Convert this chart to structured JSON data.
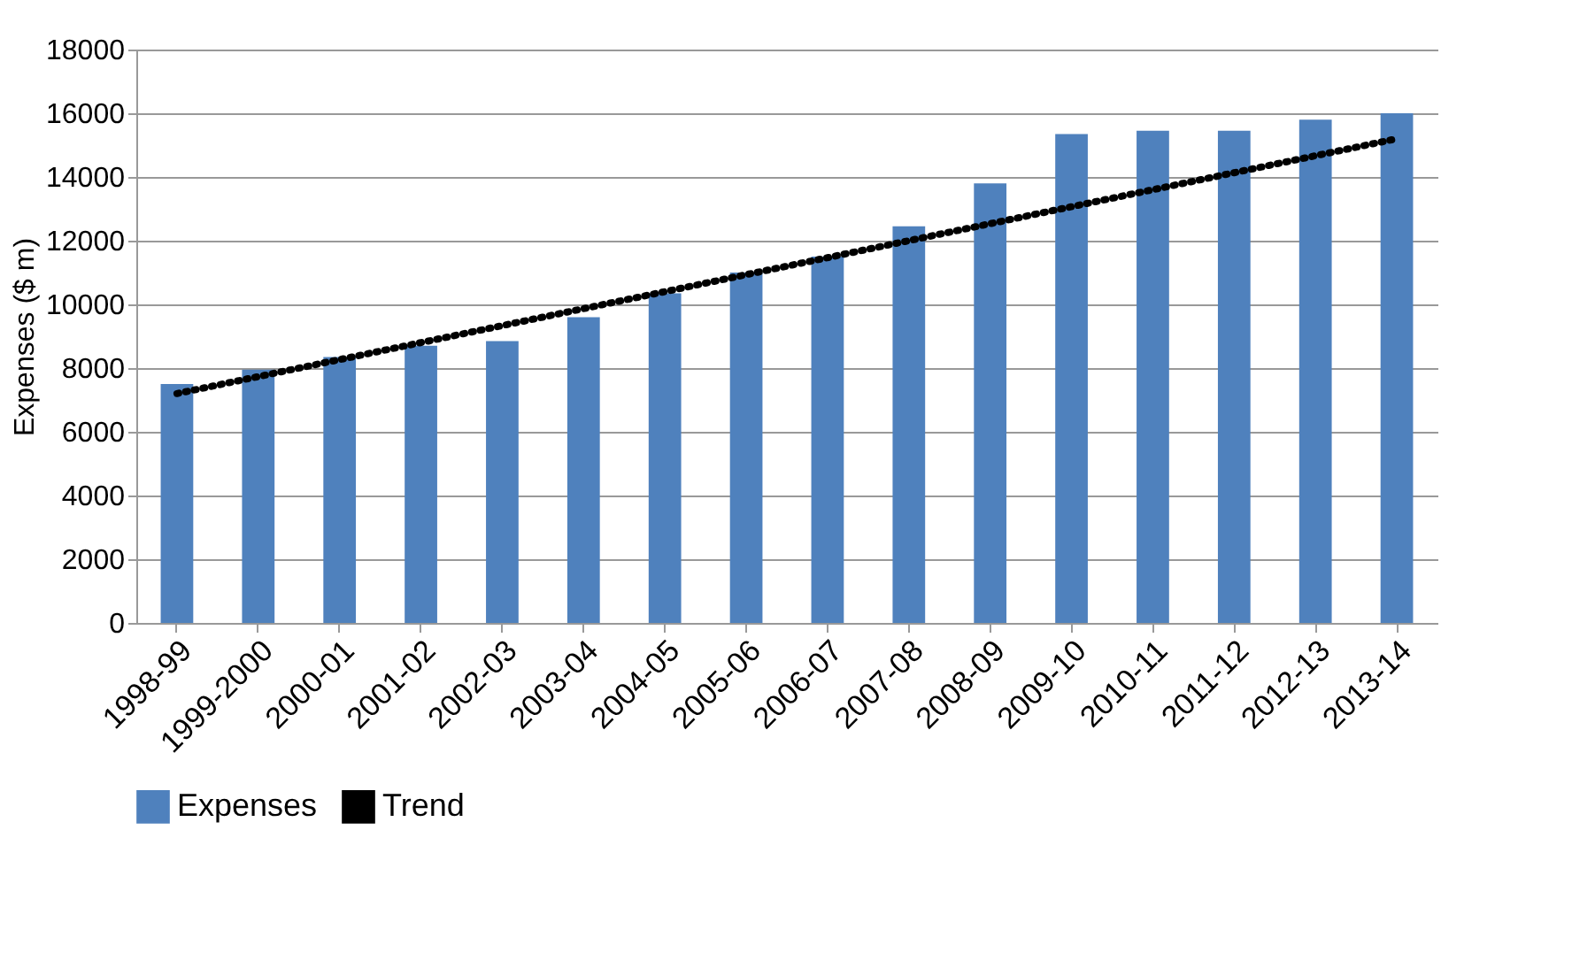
{
  "chart_data": {
    "type": "bar",
    "ylabel": "Expenses ($ m)",
    "categories": [
      "1998-99",
      "1999-2000",
      "2000-01",
      "2001-02",
      "2002-03",
      "2003-04",
      "2004-05",
      "2005-06",
      "2006-07",
      "2007-08",
      "2008-09",
      "2009-10",
      "2010-11",
      "2011-12",
      "2012-13",
      "2013-14"
    ],
    "series": [
      {
        "name": "Expenses",
        "color": "#4f81bd",
        "values": [
          7500,
          7950,
          8350,
          8700,
          8850,
          9600,
          10350,
          11000,
          11500,
          12450,
          13800,
          15350,
          15450,
          15450,
          15800,
          16000
        ]
      },
      {
        "name": "Trend",
        "type": "line",
        "color": "#000000",
        "line_style": "dotted",
        "x": [
          "1998-99",
          "2013-14"
        ],
        "values": [
          7200,
          15200
        ]
      }
    ],
    "ylim": [
      0,
      18000
    ],
    "yticks": [
      0,
      2000,
      4000,
      6000,
      8000,
      10000,
      12000,
      14000,
      16000,
      18000
    ],
    "grid": "y",
    "legend": "bottom"
  }
}
